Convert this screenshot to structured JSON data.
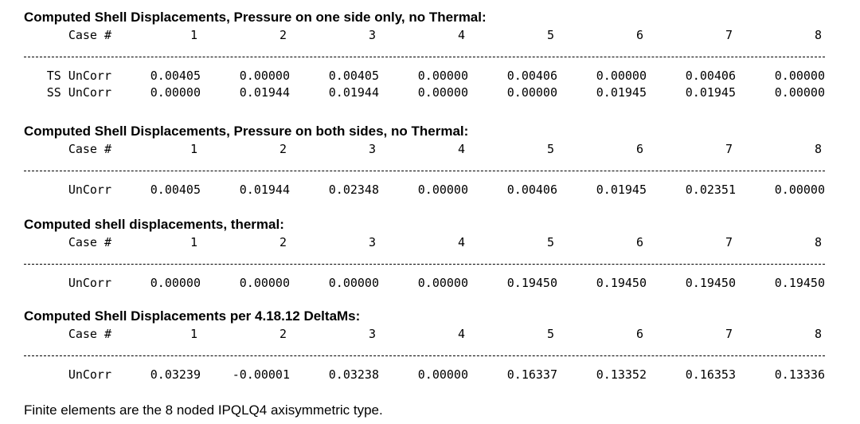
{
  "sections": [
    {
      "title": "Computed Shell Displacements, Pressure on one side only, no Thermal:",
      "header": {
        "label": "Case #",
        "cases": [
          "1",
          "2",
          "3",
          "4",
          "5",
          "6",
          "7",
          "8"
        ]
      },
      "rows": [
        {
          "label": "TS UnCorr",
          "values": [
            "0.00405",
            "0.00000",
            "0.00405",
            "0.00000",
            "0.00406",
            "0.00000",
            "0.00406",
            "0.00000"
          ]
        },
        {
          "label": "SS UnCorr",
          "values": [
            "0.00000",
            "0.01944",
            "0.01944",
            "0.00000",
            "0.00000",
            "0.01945",
            "0.01945",
            "0.00000"
          ]
        }
      ]
    },
    {
      "title": "Computed Shell Displacements, Pressure on both sides, no Thermal:",
      "header": {
        "label": "Case #",
        "cases": [
          "1",
          "2",
          "3",
          "4",
          "5",
          "6",
          "7",
          "8"
        ]
      },
      "rows": [
        {
          "label": "UnCorr",
          "values": [
            "0.00405",
            "0.01944",
            "0.02348",
            "0.00000",
            "0.00406",
            "0.01945",
            "0.02351",
            "0.00000"
          ]
        }
      ]
    },
    {
      "title": "Computed shell displacements, thermal:",
      "header": {
        "label": "Case #",
        "cases": [
          "1",
          "2",
          "3",
          "4",
          "5",
          "6",
          "7",
          "8"
        ]
      },
      "rows": [
        {
          "label": "UnCorr",
          "values": [
            "0.00000",
            "0.00000",
            "0.00000",
            "0.00000",
            "0.19450",
            "0.19450",
            "0.19450",
            "0.19450"
          ]
        }
      ]
    },
    {
      "title": "Computed Shell Displacements per 4.18.12 DeltaMs:",
      "header": {
        "label": "Case #",
        "cases": [
          "1",
          "2",
          "3",
          "4",
          "5",
          "6",
          "7",
          "8"
        ]
      },
      "rows": [
        {
          "label": "UnCorr",
          "values": [
            "0.03239",
            "-0.00001",
            "0.03238",
            "0.00000",
            "0.16337",
            "0.13352",
            "0.16353",
            "0.13336"
          ]
        }
      ]
    }
  ],
  "footer": "Finite elements are the 8 noded IPQLQ4 axisymmetric type."
}
